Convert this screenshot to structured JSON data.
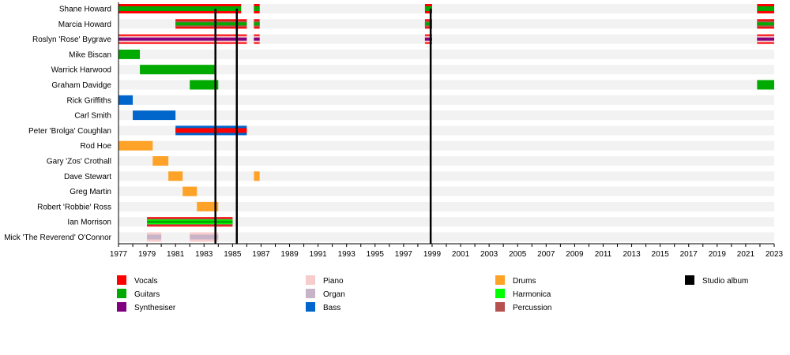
{
  "chart_data": {
    "type": "timeline",
    "xlim": [
      1977,
      2023
    ],
    "x_tick_labels": [
      "1977",
      "1979",
      "1981",
      "1983",
      "1985",
      "1987",
      "1989",
      "1991",
      "1993",
      "1995",
      "1997",
      "1999",
      "2001",
      "2003",
      "2005",
      "2007",
      "2009",
      "2011",
      "2013",
      "2015",
      "2017",
      "2019",
      "2021",
      "2023"
    ],
    "legend_placement": "bottom",
    "colors": {
      "Vocals": "#ff0000",
      "Guitars": "#00aa00",
      "Synthesiser": "#800080",
      "Piano": "#f7cccc",
      "Organ": "#c8b4c8",
      "Bass": "#0066cc",
      "Drums": "#ffa228",
      "Harmonica": "#00ff00",
      "Percussion": "#b5524f",
      "Studio album": "#000000"
    },
    "legend": [
      [
        "Vocals",
        "Guitars",
        "Synthesiser"
      ],
      [
        "Piano",
        "Organ",
        "Bass"
      ],
      [
        "Drums",
        "Harmonica",
        "Percussion"
      ],
      [
        "Studio album"
      ]
    ],
    "studio_albums": [
      1983.8,
      1985.3,
      1998.9
    ],
    "members": [
      {
        "name": "Shane Howard",
        "roles": [
          "Vocals",
          "Guitars"
        ],
        "periods": [
          [
            1977,
            1985.6
          ],
          [
            1986.5,
            1986.9
          ],
          [
            1998.5,
            1999.0
          ],
          [
            2021.8,
            2023
          ]
        ]
      },
      {
        "name": "Marcia Howard",
        "roles": [
          "Vocals",
          "Percussion",
          "Guitars"
        ],
        "periods": [
          [
            1981,
            1986
          ],
          [
            1986.5,
            1986.9
          ],
          [
            1998.5,
            1999.0
          ],
          [
            2021.8,
            2023
          ]
        ]
      },
      {
        "name": "Roslyn 'Rose' Bygrave",
        "roles": [
          "Vocals",
          "Piano",
          "Synthesiser"
        ],
        "periods": [
          [
            1977,
            1986
          ],
          [
            1986.5,
            1986.9
          ],
          [
            1998.5,
            1999.0
          ],
          [
            2021.8,
            2023
          ]
        ]
      },
      {
        "name": "Mike Biscan",
        "roles": [
          "Guitars"
        ],
        "periods": [
          [
            1977,
            1978.5
          ]
        ]
      },
      {
        "name": "Warrick Harwood",
        "roles": [
          "Guitars"
        ],
        "periods": [
          [
            1978.5,
            1983.8
          ]
        ]
      },
      {
        "name": "Graham Davidge",
        "roles": [
          "Guitars"
        ],
        "periods": [
          [
            1982,
            1984
          ],
          [
            2021.8,
            2023
          ]
        ]
      },
      {
        "name": "Rick Griffiths",
        "roles": [
          "Bass"
        ],
        "periods": [
          [
            1977,
            1978
          ]
        ]
      },
      {
        "name": "Carl Smith",
        "roles": [
          "Bass"
        ],
        "periods": [
          [
            1978,
            1981
          ]
        ]
      },
      {
        "name": "Peter 'Brolga' Coughlan",
        "roles": [
          "Bass",
          "Vocals"
        ],
        "periods": [
          [
            1981,
            1986
          ]
        ]
      },
      {
        "name": "Rod Hoe",
        "roles": [
          "Drums"
        ],
        "periods": [
          [
            1977,
            1979.4
          ]
        ]
      },
      {
        "name": "Gary 'Zos' Crothall",
        "roles": [
          "Drums"
        ],
        "periods": [
          [
            1979.4,
            1980.5
          ]
        ]
      },
      {
        "name": "Dave Stewart",
        "roles": [
          "Drums"
        ],
        "periods": [
          [
            1980.5,
            1981.5
          ],
          [
            1986.5,
            1986.9
          ]
        ]
      },
      {
        "name": "Greg Martin",
        "roles": [
          "Drums"
        ],
        "periods": [
          [
            1981.5,
            1982.5
          ]
        ]
      },
      {
        "name": "Robert 'Robbie' Ross",
        "roles": [
          "Drums"
        ],
        "periods": [
          [
            1982.5,
            1984
          ]
        ]
      },
      {
        "name": "Ian Morrison",
        "roles": [
          "Vocals",
          "Percussion",
          "Harmonica",
          "Guitars"
        ],
        "periods": [
          [
            1979,
            1985
          ]
        ]
      },
      {
        "name": "Mick 'The Reverend' O'Connor",
        "roles": [
          "Piano",
          "Organ"
        ],
        "periods": [
          [
            1979,
            1980
          ],
          [
            1982,
            1984
          ]
        ]
      }
    ]
  }
}
